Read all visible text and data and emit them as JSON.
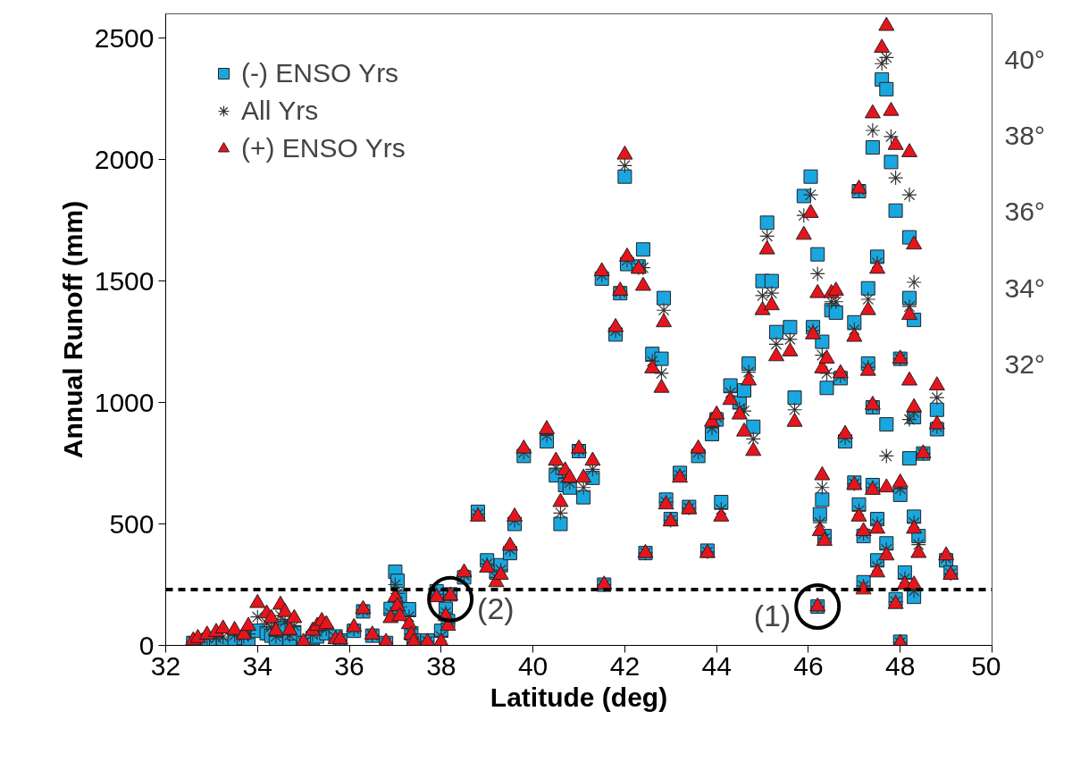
{
  "chart_data": {
    "type": "scatter",
    "xlabel": "Latitude (deg)",
    "ylabel": "Annual Runoff (mm)",
    "xlim": [
      32,
      50
    ],
    "xticks": [
      32,
      34,
      36,
      38,
      40,
      42,
      44,
      46,
      48,
      50
    ],
    "ylim": [
      0,
      2600
    ],
    "yticks": [
      0,
      500,
      1000,
      1500,
      2000,
      2500
    ],
    "grid": false,
    "legend": "top left",
    "x": [
      32.6,
      32.7,
      32.9,
      33.1,
      33.25,
      33.5,
      33.7,
      33.8,
      34.0,
      34.2,
      34.3,
      34.4,
      34.5,
      34.6,
      34.7,
      34.8,
      35.0,
      35.2,
      35.3,
      35.4,
      35.5,
      35.7,
      35.8,
      36.1,
      36.3,
      36.5,
      36.8,
      37.0,
      37.05,
      36.9,
      37.1,
      37.3,
      37.35,
      37.4,
      37.7,
      37.9,
      38.2,
      38.1,
      38.0,
      38.15,
      38.5,
      38.8,
      39.0,
      39.2,
      39.3,
      39.5,
      39.6,
      39.8,
      40.3,
      40.5,
      40.6,
      40.7,
      40.8,
      41.0,
      41.1,
      41.3,
      41.5,
      41.55,
      41.8,
      41.9,
      42.0,
      42.05,
      42.3,
      42.4,
      42.45,
      42.6,
      42.8,
      42.85,
      42.9,
      43.0,
      43.2,
      43.4,
      43.6,
      43.8,
      43.9,
      44.0,
      44.1,
      44.3,
      44.5,
      44.6,
      44.7,
      44.8,
      45.0,
      45.1,
      45.2,
      45.3,
      45.6,
      45.7,
      45.9,
      46.05,
      46.2,
      46.1,
      46.3,
      46.4,
      46.5,
      46.6,
      46.2,
      46.3,
      46.25,
      46.35,
      46.7,
      46.8,
      47.0,
      47.1,
      47.0,
      47.1,
      47.2,
      47.2,
      47.3,
      47.3,
      47.4,
      47.4,
      47.4,
      47.5,
      47.5,
      47.5,
      47.6,
      47.7,
      47.7,
      47.7,
      47.8,
      47.9,
      47.9,
      48.0,
      48.0,
      48.0,
      48.1,
      48.2,
      48.2,
      48.2,
      48.3,
      48.3,
      48.3,
      48.3,
      48.4,
      48.5,
      48.8,
      48.8,
      49.0,
      49.1
    ],
    "series": [
      {
        "name": "(-) ENSO Yrs",
        "color": "#1aa7e0",
        "marker": "square",
        "values": [
          10,
          null,
          20,
          10,
          0,
          20,
          30,
          14,
          60,
          50,
          40,
          14,
          80,
          60,
          20,
          50,
          10,
          30,
          37,
          null,
          50,
          37,
          20,
          60,
          140,
          40,
          10,
          303,
          266,
          150,
          198,
          149,
          50,
          20,
          20,
          223,
          210,
          150,
          60,
          100,
          280,
          550,
          350,
          300,
          330,
          380,
          500,
          780,
          840,
          700,
          500,
          660,
          650,
          800,
          610,
          690,
          1510,
          250,
          1280,
          1450,
          1930,
          1570,
          1560,
          1630,
          380,
          1200,
          1180,
          1430,
          600,
          520,
          710,
          570,
          780,
          390,
          870,
          930,
          590,
          1070,
          1000,
          1050,
          1160,
          900,
          1500,
          1740,
          1500,
          1290,
          1310,
          1020,
          1850,
          1930,
          1610,
          1310,
          1250,
          1060,
          1380,
          1370,
          160,
          600,
          540,
          450,
          1100,
          840,
          1330,
          1870,
          670,
          580,
          450,
          260,
          1470,
          1160,
          2050,
          980,
          660,
          1600,
          520,
          350,
          2330,
          2290,
          910,
          420,
          1990,
          1790,
          190,
          1180,
          620,
          15,
          300,
          1680,
          1430,
          770,
          530,
          200,
          1340,
          940,
          450,
          790,
          970,
          890,
          350,
          300
        ]
      },
      {
        "name": "All Yrs",
        "color": "#333333",
        "marker": "cross",
        "values": [
          15,
          22,
          32,
          32,
          35,
          42,
          37,
          47,
          117,
          90,
          76,
          37,
          123,
          98,
          42,
          81,
          12,
          45,
          58,
          80,
          68,
          31,
          22,
          68,
          145,
          42,
          12,
          250,
          214,
          131,
          159,
          118,
          47,
          17,
          17,
          210,
          208,
          135,
          37,
          90,
          290,
          540,
          335,
          280,
          310,
          395,
          515,
          795,
          865,
          730,
          545,
          690,
          670,
          805,
          650,
          725,
          1525,
          250,
          1295,
          1455,
          1975,
          1585,
          1555,
          1555,
          380,
          1170,
          1120,
          1380,
          590,
          515,
          700,
          565,
          795,
          385,
          895,
          940,
          560,
          1040,
          975,
          965,
          1125,
          850,
          1440,
          1685,
          1450,
          1240,
          1260,
          970,
          1770,
          1855,
          1530,
          1295,
          1195,
          1120,
          1415,
          1415,
          160,
          650,
          505,
          440,
          1110,
          855,
          1300,
          1875,
          665,
          555,
          460,
          245,
          1425,
          1145,
          2120,
          985,
          650,
          1575,
          500,
          325,
          2395,
          2420,
          780,
          395,
          2095,
          1925,
          180,
          1180,
          645,
          12,
          275,
          1855,
          1395,
          930,
          505,
          225,
          1495,
          960,
          415,
          790,
          1020,
          900,
          360,
          295
        ]
      },
      {
        "name": "(+) ENSO Yrs",
        "color": "#e8141c",
        "marker": "triangle",
        "values": [
          20,
          30,
          44,
          55,
          69,
          63,
          44,
          80,
          174,
          131,
          112,
          60,
          167,
          137,
          63,
          112,
          14,
          60,
          80,
          100,
          87,
          25,
          25,
          75,
          149,
          44,
          14,
          198,
          161,
          112,
          120,
          87,
          44,
          14,
          14,
          198,
          205,
          120,
          14,
          80,
          300,
          530,
          320,
          260,
          290,
          410,
          530,
          810,
          890,
          760,
          590,
          720,
          690,
          810,
          690,
          760,
          1540,
          250,
          1310,
          1460,
          2020,
          1600,
          1550,
          1480,
          380,
          1140,
          1060,
          1330,
          580,
          510,
          690,
          560,
          810,
          380,
          920,
          950,
          530,
          1010,
          950,
          880,
          1090,
          800,
          1380,
          1630,
          1400,
          1190,
          1210,
          920,
          1690,
          1780,
          1450,
          1280,
          1140,
          1180,
          1450,
          1460,
          160,
          700,
          470,
          430,
          1120,
          870,
          1270,
          1880,
          660,
          530,
          470,
          230,
          1380,
          1130,
          2190,
          990,
          640,
          1550,
          480,
          300,
          2460,
          2550,
          650,
          370,
          2200,
          2060,
          170,
          1180,
          670,
          10,
          250,
          2030,
          1360,
          1090,
          480,
          250,
          1650,
          980,
          380,
          790,
          1070,
          910,
          370,
          290
        ]
      }
    ],
    "ref_lines": [
      {
        "axis": "y",
        "value": 230,
        "color": "#000000",
        "line_style": "dashed"
      }
    ],
    "annotations": [
      {
        "text": "(2)",
        "x": 38.2,
        "y": 190
      },
      {
        "text": "(1)",
        "x": 46.2,
        "y": 160
      },
      "40°",
      "38°",
      "36°",
      "34°",
      "32°"
    ]
  }
}
